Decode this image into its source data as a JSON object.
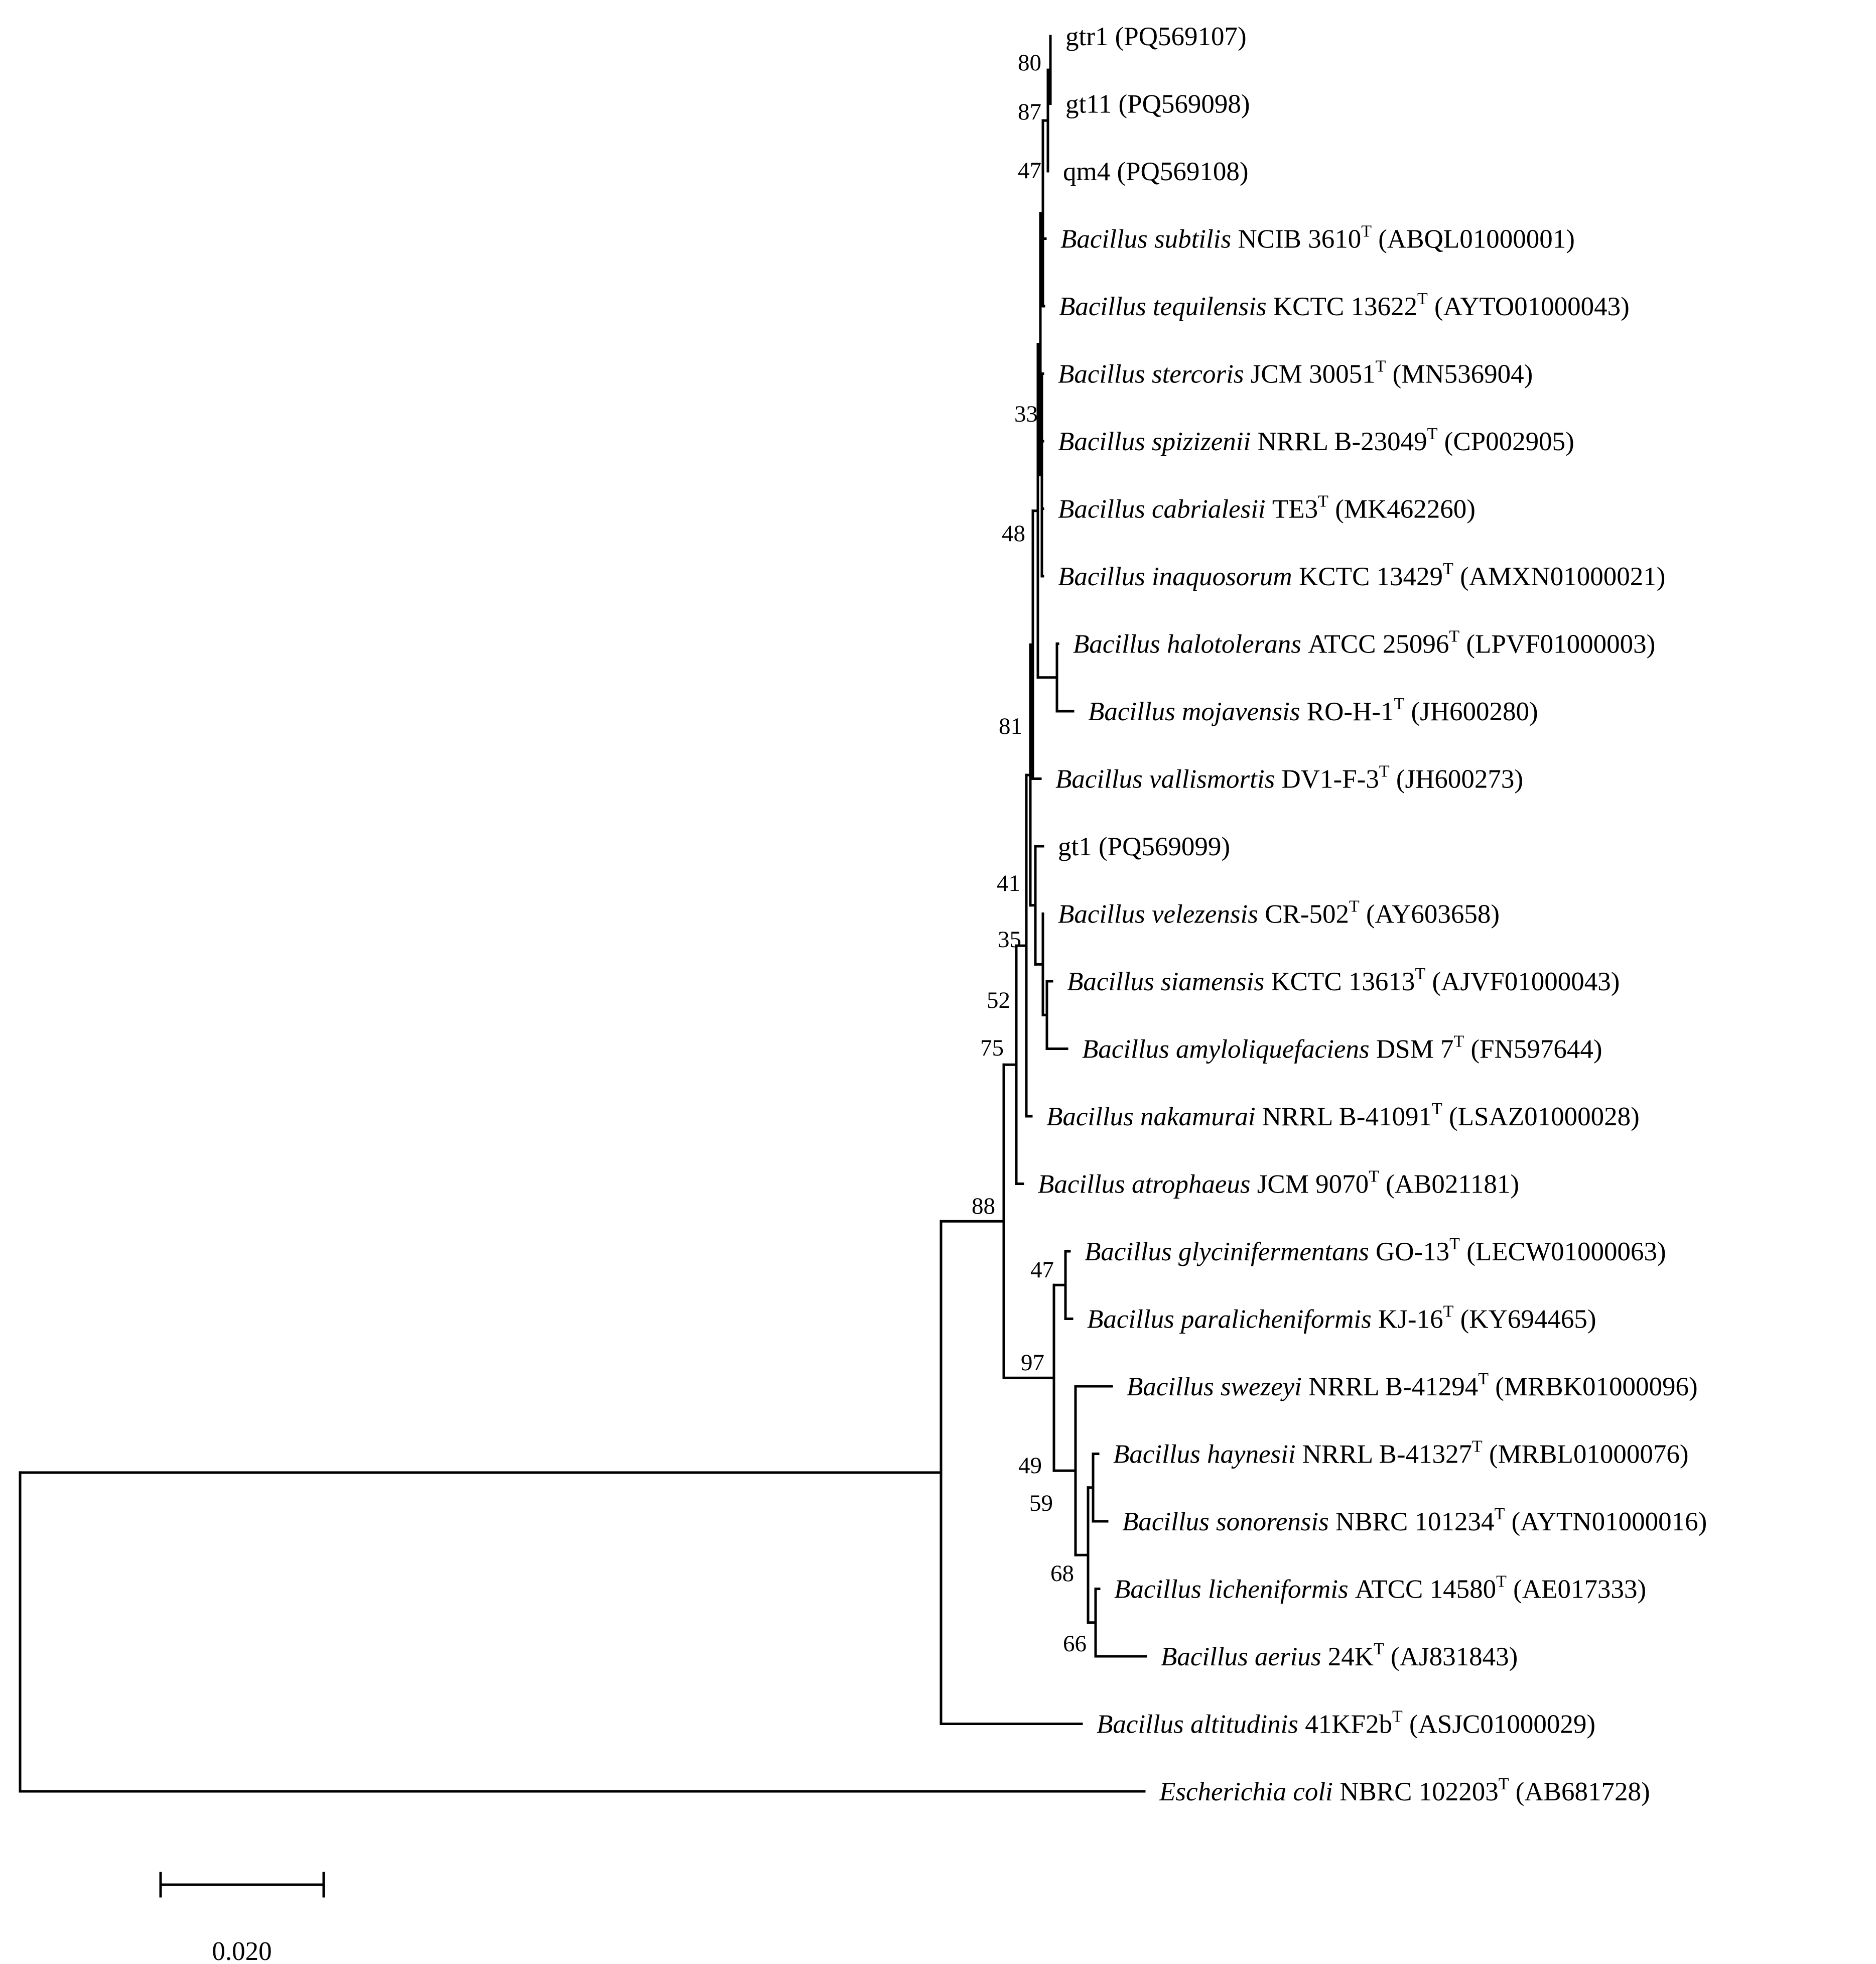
{
  "leaves": [
    {
      "id": "gtr1",
      "species": "",
      "strain": "gtr1",
      "type_strain": false,
      "accession": "(PQ569107)"
    },
    {
      "id": "gt11",
      "species": "",
      "strain": "gt11",
      "type_strain": false,
      "accession": "(PQ569098)"
    },
    {
      "id": "qm4",
      "species": "",
      "strain": "qm4",
      "type_strain": false,
      "accession": "(PQ569108)"
    },
    {
      "id": "subtilis",
      "species": "Bacillus subtilis",
      "strain": "NCIB 3610",
      "type_strain": true,
      "accession": "(ABQL01000001)"
    },
    {
      "id": "tequilensis",
      "species": "Bacillus tequilensis",
      "strain": "KCTC 13622",
      "type_strain": true,
      "accession": "(AYTO01000043)"
    },
    {
      "id": "stercoris",
      "species": "Bacillus stercoris",
      "strain": "JCM 30051",
      "type_strain": true,
      "accession": "(MN536904)"
    },
    {
      "id": "spizizenii",
      "species": "Bacillus spizizenii",
      "strain": "NRRL B-23049",
      "type_strain": true,
      "accession": "(CP002905)"
    },
    {
      "id": "cabrialesii",
      "species": "Bacillus cabrialesii",
      "strain": "TE3",
      "type_strain": true,
      "accession": "(MK462260)"
    },
    {
      "id": "inaquosorum",
      "species": "Bacillus inaquosorum",
      "strain": "KCTC 13429",
      "type_strain": true,
      "accession": "(AMXN01000021)"
    },
    {
      "id": "halotolerans",
      "species": "Bacillus halotolerans",
      "strain": "ATCC 25096",
      "type_strain": true,
      "accession": "(LPVF01000003)"
    },
    {
      "id": "mojavensis",
      "species": "Bacillus mojavensis",
      "strain": "RO-H-1",
      "type_strain": true,
      "accession": "(JH600280)"
    },
    {
      "id": "vallismortis",
      "species": "Bacillus vallismortis",
      "strain": "DV1-F-3",
      "type_strain": true,
      "accession": "(JH600273)"
    },
    {
      "id": "gt1",
      "species": "",
      "strain": "gt1",
      "type_strain": false,
      "accession": "(PQ569099)"
    },
    {
      "id": "velezensis",
      "species": "Bacillus velezensis",
      "strain": "CR-502",
      "type_strain": true,
      "accession": "(AY603658)"
    },
    {
      "id": "siamensis",
      "species": "Bacillus siamensis",
      "strain": "KCTC 13613",
      "type_strain": true,
      "accession": "(AJVF01000043)"
    },
    {
      "id": "amyloliquefaciens",
      "species": "Bacillus amyloliquefaciens",
      "strain": "DSM 7",
      "type_strain": true,
      "accession": "(FN597644)"
    },
    {
      "id": "nakamurai",
      "species": "Bacillus nakamurai",
      "strain": "NRRL B-41091",
      "type_strain": true,
      "accession": "(LSAZ01000028)"
    },
    {
      "id": "atrophaeus",
      "species": "Bacillus atrophaeus",
      "strain": "JCM 9070",
      "type_strain": true,
      "accession": "(AB021181)"
    },
    {
      "id": "glycinifermentans",
      "species": "Bacillus glycinifermentans",
      "strain": "GO-13",
      "type_strain": true,
      "accession": "(LECW01000063)"
    },
    {
      "id": "paralicheniformis",
      "species": "Bacillus paralicheniformis",
      "strain": "KJ-16",
      "type_strain": true,
      "accession": "(KY694465)"
    },
    {
      "id": "swezeyi",
      "species": "Bacillus swezeyi",
      "strain": "NRRL B-41294",
      "type_strain": true,
      "accession": "(MRBK01000096)"
    },
    {
      "id": "haynesii",
      "species": "Bacillus haynesii",
      "strain": "NRRL B-41327",
      "type_strain": true,
      "accession": "(MRBL01000076)"
    },
    {
      "id": "sonorensis",
      "species": "Bacillus sonorensis",
      "strain": "NBRC 101234",
      "type_strain": true,
      "accession": "(AYTN01000016)"
    },
    {
      "id": "licheniformis",
      "species": "Bacillus licheniformis",
      "strain": "ATCC 14580",
      "type_strain": true,
      "accession": "(AE017333)"
    },
    {
      "id": "aerius",
      "species": "Bacillus aerius",
      "strain": "24K",
      "type_strain": true,
      "accession": "(AJ831843)"
    },
    {
      "id": "altitudinis",
      "species": "Bacillus altitudinis",
      "strain": "41KF2b",
      "type_strain": true,
      "accession": "(ASJC01000029)"
    },
    {
      "id": "ecoli",
      "species": "Escherichia coli",
      "strain": "NBRC 102203",
      "type_strain": true,
      "accession": "(AB681728)"
    }
  ],
  "type_strain_marker": "T",
  "bootstrap_values": [
    "80",
    "87",
    "47",
    "33",
    "48",
    "81",
    "41",
    "35",
    "52",
    "75",
    "88",
    "47",
    "97",
    "49",
    "59",
    "68",
    "66"
  ],
  "scale_bar": {
    "label": "0.020",
    "value": 0.02
  },
  "colors": {
    "line": "#000000",
    "text": "#000000",
    "background": "#ffffff"
  }
}
